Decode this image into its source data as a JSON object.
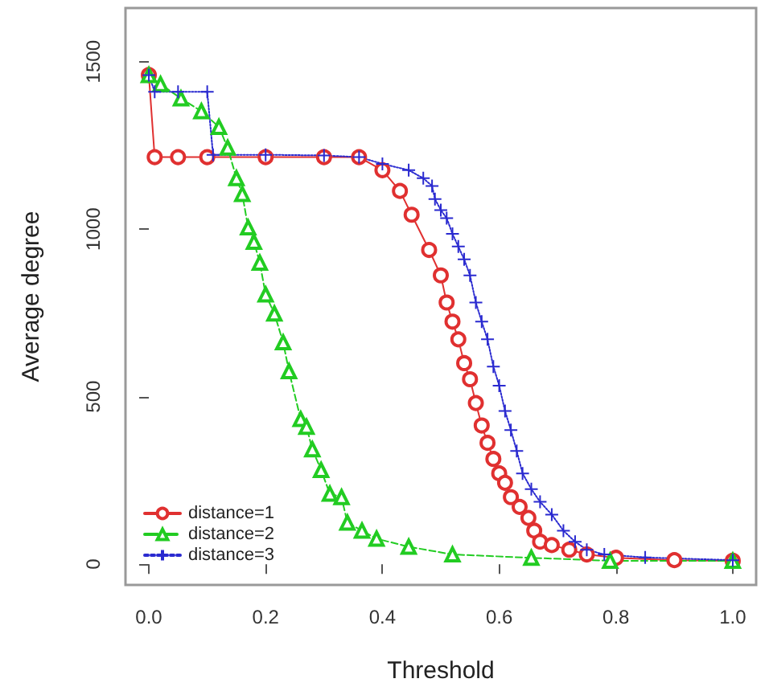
{
  "chart_data": {
    "type": "line",
    "xlabel": "Threshold",
    "ylabel": "Average degree",
    "xlim": [
      -0.04,
      1.04
    ],
    "ylim": [
      -62,
      1660
    ],
    "xticks": [
      {
        "value": 0,
        "label": "0.0"
      },
      {
        "value": 0.2,
        "label": "0.2"
      },
      {
        "value": 0.4,
        "label": "0.4"
      },
      {
        "value": 0.6,
        "label": "0.6"
      },
      {
        "value": 0.8,
        "label": "0.8"
      },
      {
        "value": 1,
        "label": "1.0"
      }
    ],
    "yticks": [
      0,
      500,
      1000,
      1500
    ],
    "grid": false,
    "legend": "bottom left",
    "series": [
      {
        "name": "distance=1",
        "color": "#e03030",
        "marker": "circle",
        "line_style": "solid",
        "x": [
          0,
          0.01,
          0.05,
          0.1,
          0.2,
          0.3,
          0.36,
          0.4,
          0.43,
          0.45,
          0.48,
          0.5,
          0.51,
          0.52,
          0.53,
          0.54,
          0.55,
          0.56,
          0.57,
          0.58,
          0.59,
          0.6,
          0.61,
          0.62,
          0.635,
          0.65,
          0.66,
          0.67,
          0.69,
          0.72,
          0.75,
          0.8,
          0.9,
          1.0
        ],
        "values": [
          1460,
          1215,
          1215,
          1215,
          1215,
          1215,
          1215,
          1176,
          1114,
          1043,
          938,
          862,
          781,
          724,
          671,
          600,
          552,
          481,
          414,
          362,
          314,
          271,
          243,
          200,
          171,
          138,
          100,
          67,
          57,
          43,
          29,
          19,
          12,
          10
        ]
      },
      {
        "name": "distance=2",
        "color": "#22cc22",
        "marker": "triangle",
        "line_style": "dashed",
        "x": [
          0,
          0.02,
          0.055,
          0.09,
          0.12,
          0.135,
          0.15,
          0.16,
          0.17,
          0.18,
          0.19,
          0.2,
          0.215,
          0.23,
          0.24,
          0.26,
          0.27,
          0.28,
          0.295,
          0.31,
          0.33,
          0.34,
          0.365,
          0.39,
          0.445,
          0.52,
          0.655,
          0.79,
          1.0
        ],
        "values": [
          1460,
          1433,
          1390,
          1352,
          1305,
          1243,
          1152,
          1105,
          1005,
          962,
          900,
          805,
          748,
          662,
          576,
          433,
          410,
          343,
          281,
          210,
          200,
          124,
          100,
          76,
          52,
          29,
          19,
          10,
          10
        ]
      },
      {
        "name": "distance=3",
        "color": "#2a2ad0",
        "marker": "cross",
        "line_style": "dotted",
        "x": [
          0,
          0.01,
          0.05,
          0.1,
          0.11,
          0.2,
          0.3,
          0.36,
          0.4,
          0.445,
          0.47,
          0.485,
          0.49,
          0.5,
          0.51,
          0.52,
          0.53,
          0.54,
          0.55,
          0.56,
          0.57,
          0.58,
          0.59,
          0.6,
          0.61,
          0.62,
          0.63,
          0.64,
          0.655,
          0.67,
          0.69,
          0.71,
          0.73,
          0.75,
          0.78,
          0.85,
          1.0
        ],
        "values": [
          1460,
          1410,
          1410,
          1410,
          1222,
          1222,
          1220,
          1215,
          1195,
          1176,
          1152,
          1129,
          1090,
          1057,
          1033,
          986,
          948,
          910,
          862,
          781,
          724,
          671,
          590,
          533,
          457,
          400,
          338,
          271,
          224,
          186,
          148,
          100,
          67,
          43,
          29,
          20,
          12
        ]
      }
    ]
  }
}
